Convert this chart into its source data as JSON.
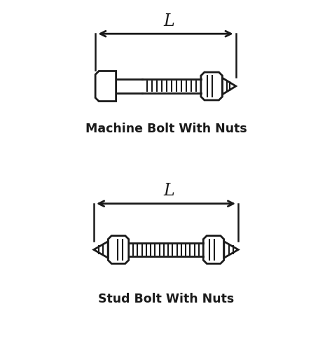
{
  "bg_color": "#ffffff",
  "line_color": "#1a1a1a",
  "line_width": 2.0,
  "title1": "Machine Bolt With Nuts",
  "title2": "Stud Bolt With Nuts",
  "title_fontsize": 12.5,
  "fig_width": 4.74,
  "fig_height": 4.84,
  "dpi": 100
}
